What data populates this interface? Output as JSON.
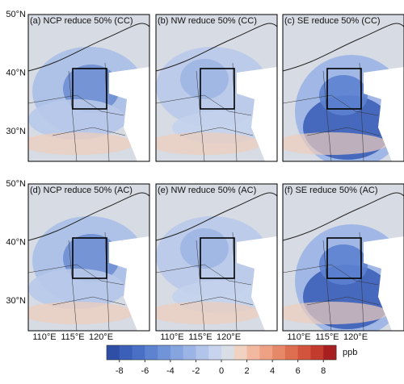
{
  "panels": [
    {
      "title": "(a) NCP reduce 50% (CC)"
    },
    {
      "title": "(b) NW reduce 50% (CC)"
    },
    {
      "title": "(c) SE reduce 50% (CC)"
    },
    {
      "title": "(d) NCP reduce 50% (AC)"
    },
    {
      "title": "(e) NW reduce 50% (AC)"
    },
    {
      "title": "(f) SE reduce 50% (AC)"
    }
  ],
  "lat_labels": [
    "50°N",
    "40°N",
    "30°N"
  ],
  "lon_labels": [
    "110°E",
    "115°E",
    "120°E"
  ],
  "colorbar": {
    "range": [
      -9,
      9
    ],
    "ticks": [
      -8,
      -6,
      -4,
      -2,
      0,
      2,
      4,
      6,
      8
    ],
    "unit": "ppb",
    "colors": [
      "#2f4ea6",
      "#3c5fb8",
      "#4a70c6",
      "#5d82d0",
      "#7193d8",
      "#86a4df",
      "#9bb4e5",
      "#b1c4ea",
      "#c8d4ee",
      "#d9dde5",
      "#f0d2c2",
      "#f2b9a0",
      "#eea183",
      "#e78868",
      "#de6e50",
      "#d2543c",
      "#c33b2c",
      "#a81f22"
    ]
  }
}
